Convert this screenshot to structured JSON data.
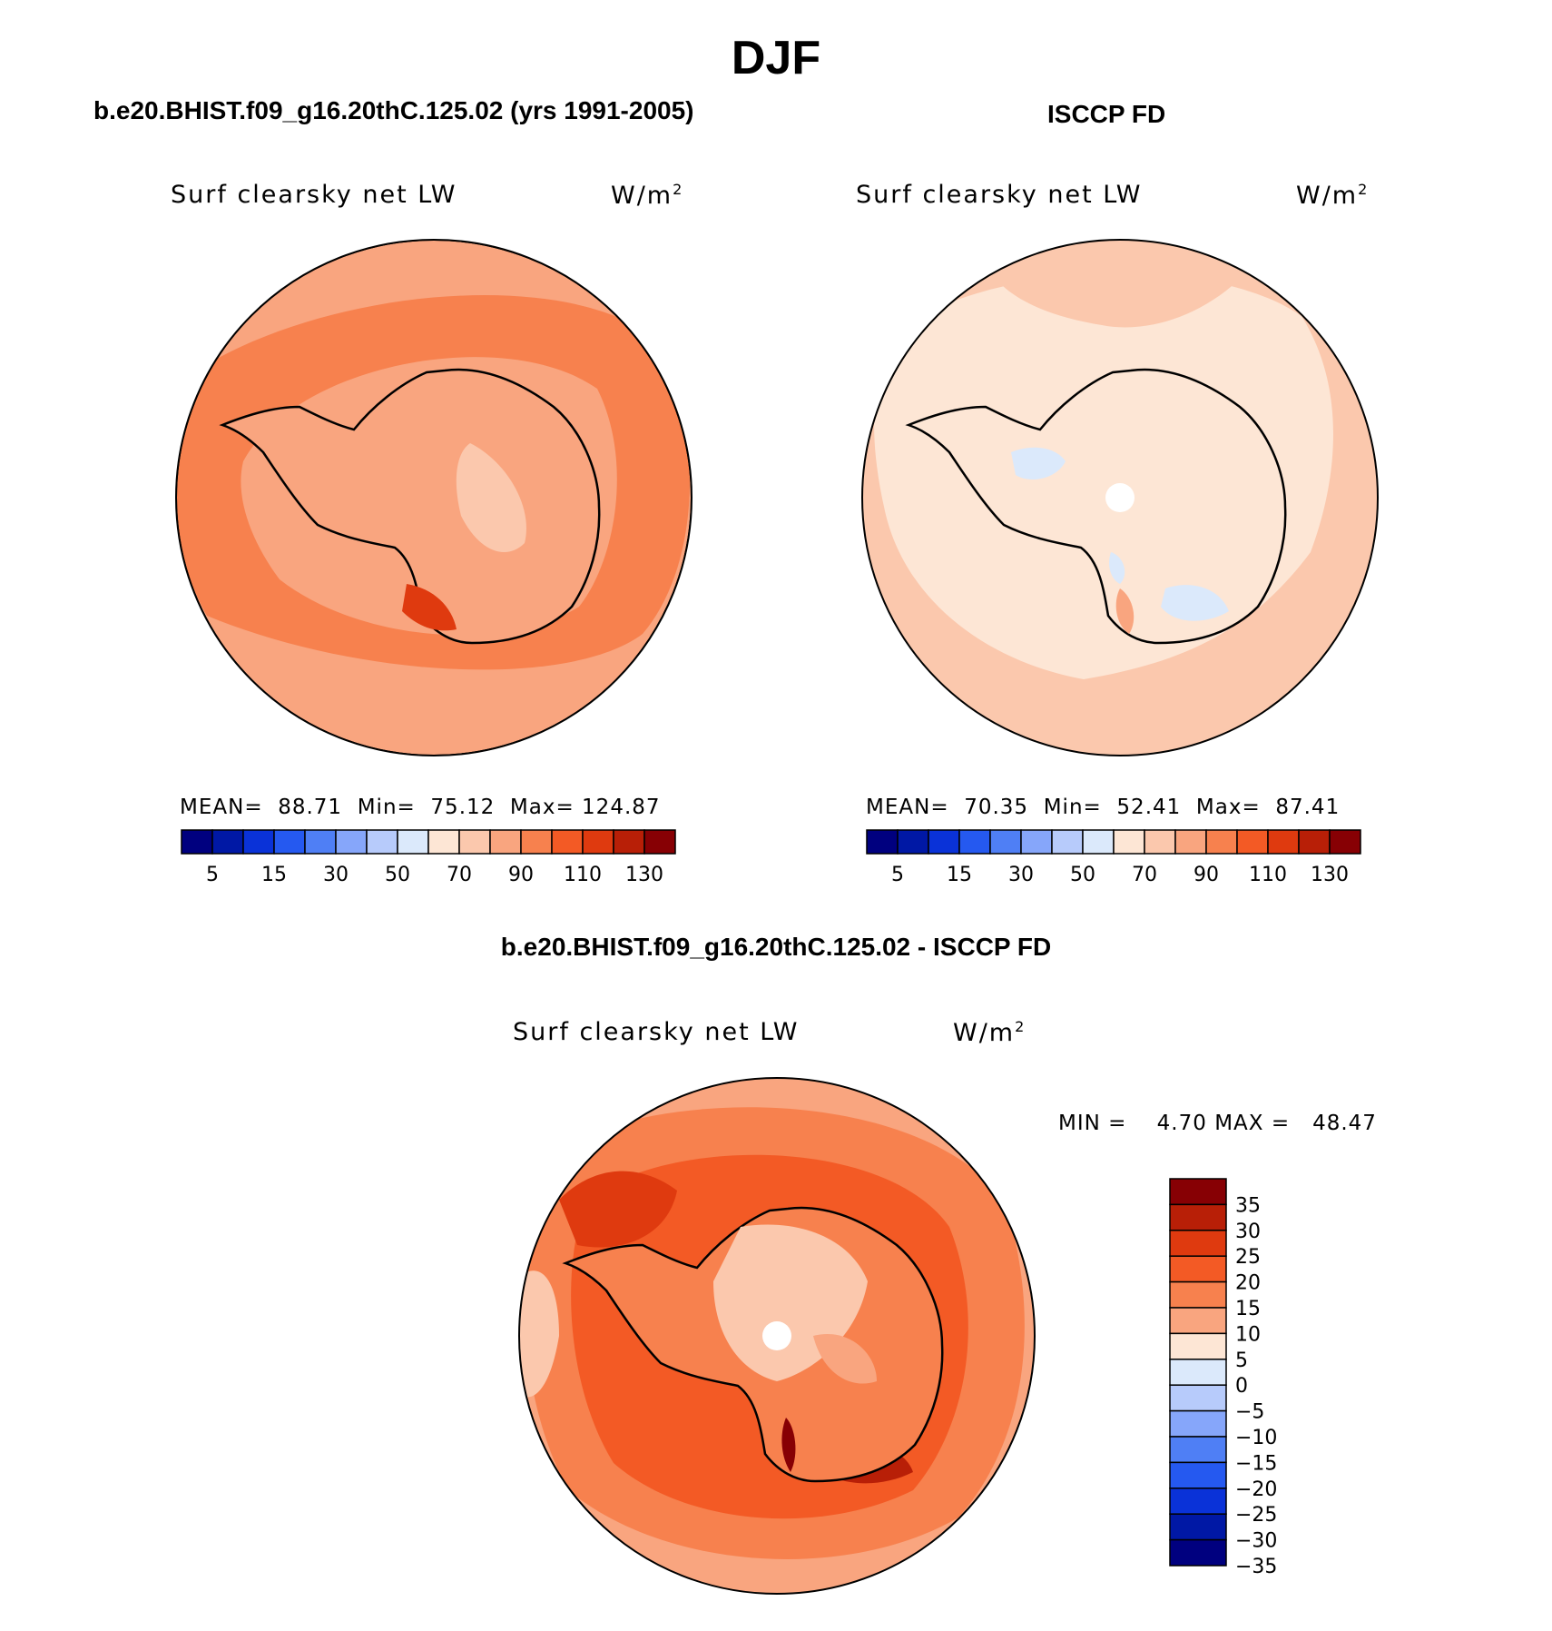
{
  "figure": {
    "season": "DJF"
  },
  "panels": [
    {
      "case_title": "b.e20.BHIST.f09_g16.20thC.125.02 (yrs 1991-2005)",
      "variable": "Surf clearsky net LW",
      "units": "W/m",
      "units_sup": "2",
      "stats": {
        "mean_label": "MEAN=",
        "mean": "88.71",
        "min_label": "Min=",
        "min": "75.12",
        "max_label": "Max=",
        "max": "124.87"
      }
    },
    {
      "case_title": "ISCCP FD",
      "variable": "Surf clearsky net LW",
      "units": "W/m",
      "units_sup": "2",
      "stats": {
        "mean_label": "MEAN=",
        "mean": "70.35",
        "min_label": "Min=",
        "min": "52.41",
        "max_label": "Max=",
        "max": "87.41"
      }
    },
    {
      "case_title": "b.e20.BHIST.f09_g16.20thC.125.02 - ISCCP FD",
      "variable": "Surf clearsky net LW",
      "units": "W/m",
      "units_sup": "2",
      "stats": {
        "min_label": "MIN =",
        "min": "4.70",
        "max_label": "MAX =",
        "max": "48.47"
      }
    }
  ],
  "colorbar_abs": {
    "colors": [
      "#00007f",
      "#0018a5",
      "#0a32d8",
      "#2559f0",
      "#4f7ff5",
      "#86a6fa",
      "#b7cbfb",
      "#dbe9fb",
      "#fde6d5",
      "#fbc8ad",
      "#f9a57f",
      "#f7814e",
      "#f35a25",
      "#df3a0f",
      "#b81f07",
      "#870004"
    ],
    "labels": [
      "5",
      "15",
      "30",
      "50",
      "70",
      "90",
      "110",
      "130"
    ]
  },
  "colorbar_diff": {
    "colors": [
      "#870004",
      "#b81f07",
      "#df3a0f",
      "#f35a25",
      "#f7814e",
      "#f9a57f",
      "#fde6d5",
      "#dbe9fb",
      "#b7cbfb",
      "#86a6fa",
      "#4f7ff5",
      "#2559f0",
      "#0a32d8",
      "#0018a5",
      "#00007f"
    ],
    "labels": [
      "35",
      "30",
      "25",
      "20",
      "15",
      "10",
      "5",
      "0",
      "−5",
      "−10",
      "−15",
      "−20",
      "−25",
      "−30",
      "−35"
    ]
  }
}
